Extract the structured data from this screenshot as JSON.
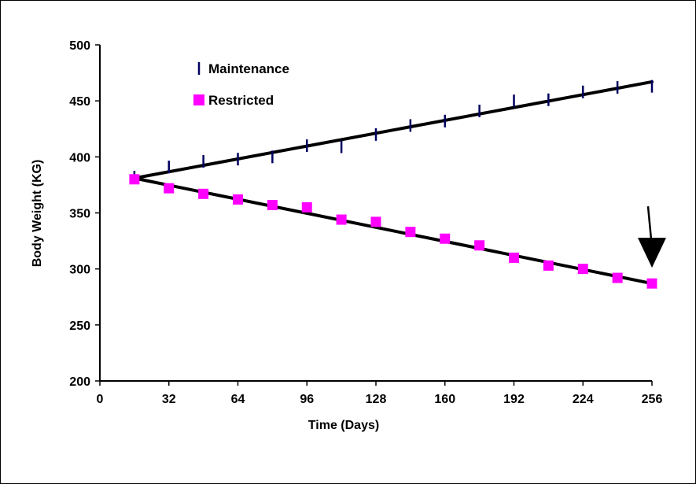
{
  "chart_data": {
    "type": "scatter",
    "title": "",
    "xlabel": "Time  (Days)",
    "ylabel": "Body Weight (KG)",
    "xlim": [
      0,
      256
    ],
    "ylim": [
      200,
      500
    ],
    "x_ticks": [
      0,
      32,
      64,
      96,
      128,
      160,
      192,
      224,
      256
    ],
    "y_ticks": [
      200,
      250,
      300,
      350,
      400,
      450,
      500
    ],
    "grid": false,
    "legend_position": "top-left",
    "series": [
      {
        "name": "Maintenance",
        "marker": "vertical-dash",
        "color": "#00005f",
        "x": [
          16,
          32,
          48,
          64,
          80,
          96,
          112,
          128,
          144,
          160,
          176,
          192,
          208,
          224,
          240,
          256
        ],
        "y": [
          382,
          391,
          396,
          398,
          400,
          410,
          409,
          420,
          428,
          432,
          441,
          450,
          451,
          458,
          462,
          463
        ],
        "trendline": {
          "x": [
            16,
            256
          ],
          "y": [
            381,
            467
          ]
        }
      },
      {
        "name": "Restricted",
        "marker": "square",
        "color": "#ff00ff",
        "x": [
          16,
          32,
          48,
          64,
          80,
          96,
          112,
          128,
          144,
          160,
          176,
          192,
          208,
          224,
          240,
          256
        ],
        "y": [
          380,
          372,
          367,
          362,
          357,
          355,
          344,
          342,
          333,
          327,
          321,
          310,
          303,
          300,
          292,
          287
        ],
        "trendline": {
          "x": [
            16,
            256
          ],
          "y": [
            381,
            287
          ]
        }
      }
    ],
    "annotation": {
      "type": "arrow",
      "points_to": {
        "x": 256,
        "y": 287
      }
    }
  }
}
